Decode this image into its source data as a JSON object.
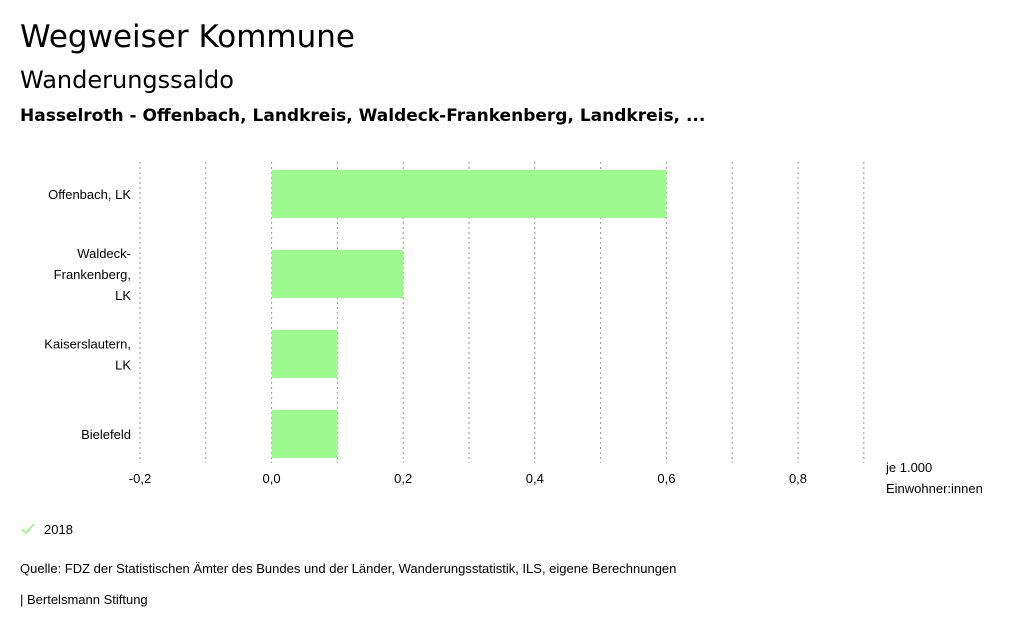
{
  "header": {
    "title": "Wegweiser Kommune",
    "subtitle": "Wanderungssaldo",
    "subsubtitle": "Hasselroth - Offenbach, Landkreis, Waldeck-Frankenberg, Landkreis, ..."
  },
  "colors": {
    "bar": "#9dfa8f",
    "grid": "#9a9a9a"
  },
  "chart_data": {
    "type": "bar",
    "orientation": "horizontal",
    "categories": [
      [
        "Offenbach, LK"
      ],
      [
        "Waldeck-",
        "Frankenberg,",
        "LK"
      ],
      [
        "Kaiserslautern,",
        "LK"
      ],
      [
        "Bielefeld"
      ]
    ],
    "series": [
      {
        "name": "2018",
        "values": [
          0.6,
          0.2,
          0.1,
          0.1
        ]
      }
    ],
    "xlim": [
      -0.2,
      0.9
    ],
    "gridlines": [
      -0.2,
      -0.1,
      0.0,
      0.1,
      0.2,
      0.3,
      0.4,
      0.5,
      0.6,
      0.7,
      0.8,
      0.9
    ],
    "ticks": [
      {
        "value": -0.2,
        "label": "-0,2"
      },
      {
        "value": 0.0,
        "label": "0,0"
      },
      {
        "value": 0.2,
        "label": "0,2"
      },
      {
        "value": 0.4,
        "label": "0,4"
      },
      {
        "value": 0.6,
        "label": "0,6"
      },
      {
        "value": 0.8,
        "label": "0,8"
      }
    ],
    "unit_label": [
      "je 1.000",
      "Einwohner:innen"
    ],
    "grid": true,
    "legend": "bottom-left"
  },
  "legend": {
    "label": "2018"
  },
  "footer": {
    "source": "Quelle: FDZ der Statistischen Ämter des Bundes und der Länder, Wanderungsstatistik, ILS, eigene Berechnungen",
    "publisher": "| Bertelsmann Stiftung"
  }
}
